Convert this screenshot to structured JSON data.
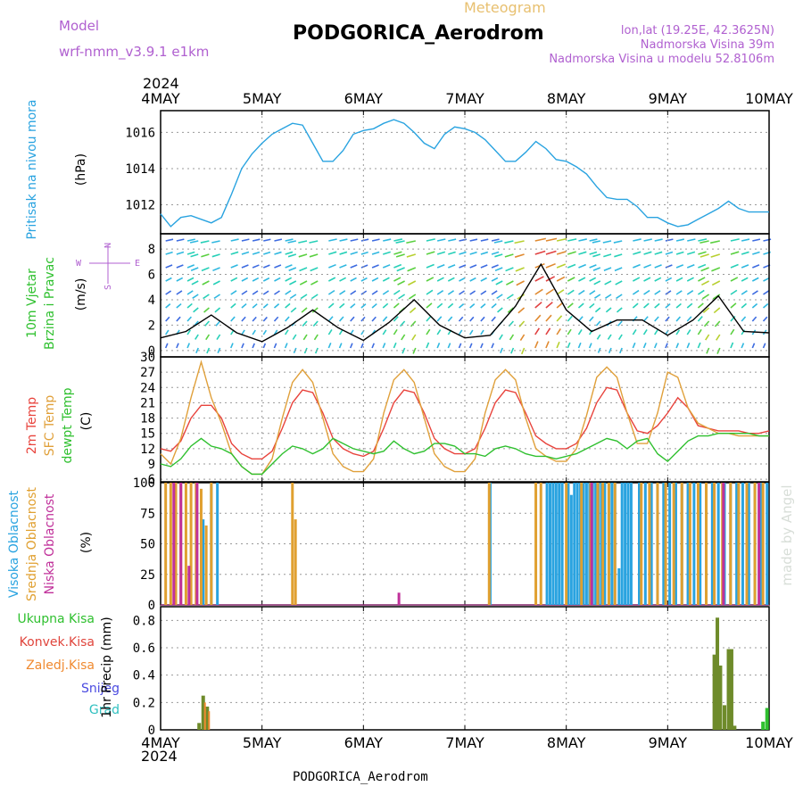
{
  "header": {
    "model_label": "Model",
    "model_name": "wrf-nmm_v3.9.1 e1km",
    "chart_kind": "Meteogram",
    "station": "PODGORICA_Aerodrom",
    "lonlat": "lon,lat (19.25E, 42.3625N)",
    "elevation": "Nadmorska Visina 39m",
    "model_elevation": "Nadmorska Visina u modelu 52.8106m",
    "bottom_station": "PODGORICA_Aerodrom",
    "credit": "made by Angel"
  },
  "colors": {
    "pressure": "#29a3e0",
    "t2m": "#e8433c",
    "tsfc": "#e0a03a",
    "dewpt": "#2fc02f",
    "total_precip": "#6e8b2a",
    "conv_precip": "#e0453c",
    "frozen_precip": "#f08a30",
    "snow": "#4a4ae0",
    "hail": "#30c0c0",
    "cloud_high": "#29a3e0",
    "cloud_mid": "#e0a030",
    "cloud_low": "#c0309a",
    "model_text": "#b060d0"
  },
  "chart_data": [
    {
      "type": "line",
      "panel": "pressure",
      "ylabel": "Pritisak na nivou mora",
      "unit": "(hPa)",
      "yticks": [
        1012,
        1014,
        1016
      ],
      "ylim": [
        1010.4,
        1017.2
      ],
      "x_days": [
        0,
        0.1,
        0.2,
        0.3,
        0.4,
        0.5,
        0.6,
        0.7,
        0.8,
        0.9,
        1.0,
        1.1,
        1.2,
        1.3,
        1.4,
        1.5,
        1.6,
        1.7,
        1.8,
        1.9,
        2.0,
        2.1,
        2.2,
        2.3,
        2.4,
        2.5,
        2.6,
        2.7,
        2.8,
        2.9,
        3.0,
        3.1,
        3.2,
        3.3,
        3.4,
        3.5,
        3.6,
        3.7,
        3.8,
        3.9,
        4.0,
        4.1,
        4.2,
        4.3,
        4.4,
        4.5,
        4.6,
        4.7,
        4.8,
        4.9,
        5.0,
        5.1,
        5.2,
        5.3,
        5.4,
        5.5,
        5.6,
        5.7,
        5.8,
        5.9,
        6.0
      ],
      "series": [
        {
          "values": [
            1011.5,
            1010.8,
            1011.3,
            1011.4,
            1011.2,
            1011.0,
            1011.3,
            1012.6,
            1014.0,
            1014.8,
            1015.4,
            1015.9,
            1016.2,
            1016.5,
            1016.4,
            1015.4,
            1014.4,
            1014.4,
            1015.0,
            1015.9,
            1016.1,
            1016.2,
            1016.5,
            1016.7,
            1016.5,
            1016.0,
            1015.4,
            1015.1,
            1015.9,
            1016.3,
            1016.2,
            1016.0,
            1015.6,
            1015.0,
            1014.4,
            1014.4,
            1014.9,
            1015.5,
            1015.1,
            1014.5,
            1014.4,
            1014.1,
            1013.7,
            1013.0,
            1012.4,
            1012.3,
            1012.3,
            1011.9,
            1011.3,
            1011.3,
            1011.0,
            1010.8,
            1010.9,
            1011.2,
            1011.5,
            1011.8,
            1012.2,
            1011.8,
            1011.6,
            1011.6,
            1011.6
          ]
        }
      ]
    },
    {
      "type": "line",
      "panel": "wind",
      "ylabel": "10m Vjetar Brzina i Pravac",
      "unit": "(m/s)",
      "compass": [
        "N",
        "W",
        "E",
        "S"
      ],
      "yticks": [
        0,
        2,
        4,
        6,
        8
      ],
      "ylim": [
        -0.5,
        9.2
      ],
      "x_days": [
        0,
        0.25,
        0.5,
        0.75,
        1.0,
        1.25,
        1.5,
        1.75,
        2.0,
        2.25,
        2.5,
        2.75,
        3.0,
        3.25,
        3.5,
        3.75,
        4.0,
        4.25,
        4.5,
        4.75,
        5.0,
        5.25,
        5.5,
        5.75,
        6.0
      ],
      "series": [
        {
          "values": [
            1.0,
            1.5,
            2.8,
            1.4,
            0.7,
            1.8,
            3.2,
            1.8,
            0.8,
            2.2,
            4.0,
            2.0,
            1.0,
            1.2,
            3.5,
            6.8,
            3.2,
            1.5,
            2.4,
            2.4,
            1.2,
            2.4,
            4.3,
            1.5,
            1.4
          ]
        }
      ]
    },
    {
      "type": "line",
      "panel": "temperature",
      "ylabel": "2m Temp / SFC Temp / dewpt Temp",
      "unit": "(C)",
      "yticks": [
        6,
        9,
        12,
        15,
        18,
        21,
        24,
        27,
        30
      ],
      "ylim": [
        5.5,
        30
      ],
      "x_days": [
        0,
        0.1,
        0.2,
        0.3,
        0.4,
        0.5,
        0.6,
        0.7,
        0.8,
        0.9,
        1.0,
        1.1,
        1.2,
        1.3,
        1.4,
        1.5,
        1.6,
        1.7,
        1.8,
        1.9,
        2.0,
        2.1,
        2.2,
        2.3,
        2.4,
        2.5,
        2.6,
        2.7,
        2.8,
        2.9,
        3.0,
        3.1,
        3.2,
        3.3,
        3.4,
        3.5,
        3.6,
        3.7,
        3.8,
        3.9,
        4.0,
        4.1,
        4.2,
        4.3,
        4.4,
        4.5,
        4.6,
        4.7,
        4.8,
        4.9,
        5.0,
        5.1,
        5.2,
        5.3,
        5.4,
        5.5,
        5.6,
        5.7,
        5.8,
        5.9,
        6.0
      ],
      "series": [
        {
          "name": "2m Temp",
          "values": [
            12,
            11.5,
            13.5,
            18,
            20.5,
            20.5,
            18,
            13,
            11,
            10,
            10,
            11.5,
            16,
            21,
            23.5,
            23,
            19,
            14,
            12,
            11,
            10.5,
            11.5,
            16,
            21,
            23.5,
            23,
            19,
            14,
            12,
            11,
            11,
            12,
            16,
            21,
            23.5,
            23,
            19,
            14.5,
            13,
            12,
            12,
            13,
            16,
            21,
            24,
            23.5,
            19,
            15.5,
            15,
            16.5,
            19,
            22,
            20,
            16.5,
            16,
            15.5,
            15.5,
            15.5,
            15,
            15,
            15.5
          ]
        },
        {
          "name": "SFC Temp",
          "values": [
            11,
            9,
            14,
            22,
            29,
            22,
            17,
            11,
            8.5,
            7,
            7,
            10,
            18,
            25,
            27.5,
            25,
            18,
            11,
            8.5,
            7.5,
            7.5,
            10,
            19,
            25.5,
            27.5,
            25,
            18,
            11,
            8.5,
            7.5,
            7.5,
            10,
            19,
            25.5,
            27.5,
            25.5,
            18,
            12,
            10.5,
            9.5,
            9.5,
            12,
            18.5,
            26,
            28,
            26,
            19,
            13,
            13,
            19,
            27,
            26,
            20,
            17,
            16,
            15,
            15,
            14.5,
            14.5,
            14.5,
            14.5
          ]
        },
        {
          "name": "dewpt Temp",
          "values": [
            9,
            8.5,
            10,
            12.5,
            14,
            12.5,
            12,
            11,
            8.5,
            7,
            7,
            9,
            11,
            12.5,
            12,
            11,
            12,
            14,
            13,
            12,
            11.5,
            11,
            11.5,
            13.5,
            12,
            11,
            11.5,
            13,
            13,
            12.5,
            11,
            11,
            10.5,
            12,
            12.5,
            12,
            11,
            10.5,
            10.5,
            10,
            10.5,
            11,
            12,
            13,
            14,
            13.5,
            12,
            13.5,
            14,
            11,
            9.5,
            11.5,
            13.5,
            14.5,
            14.5,
            15,
            15,
            15,
            15,
            14.5,
            14.5
          ]
        }
      ]
    },
    {
      "type": "bar",
      "panel": "cloud",
      "ylabel": "Visoka Oblacnost / Srednja Oblacnost / Niska Oblacnost",
      "unit": "(%)",
      "yticks": [
        0,
        25,
        50,
        75,
        100
      ],
      "ylim": [
        0,
        100
      ],
      "series": [
        {
          "name": "Visoka Oblacnost",
          "x_days": [
            0.42,
            0.5,
            0.56,
            3.25,
            3.81,
            3.84,
            3.87,
            3.9,
            3.93,
            3.96,
            4.02,
            4.05,
            4.08,
            4.11,
            4.14,
            4.17,
            4.2,
            4.23,
            4.26,
            4.29,
            4.32,
            4.35,
            4.38,
            4.42,
            4.45,
            4.48,
            4.52,
            4.55,
            4.58,
            4.61,
            4.64,
            4.72,
            4.78,
            4.84,
            4.9,
            4.96,
            5.02,
            5.08,
            5.14,
            5.2,
            5.26,
            5.32,
            5.38,
            5.44,
            5.5,
            5.56,
            5.62,
            5.68,
            5.74,
            5.8,
            5.86,
            5.92,
            5.98
          ],
          "values": [
            70,
            100,
            100,
            100,
            100,
            100,
            100,
            100,
            100,
            100,
            100,
            90,
            100,
            100,
            100,
            100,
            100,
            100,
            100,
            100,
            100,
            100,
            100,
            100,
            100,
            100,
            30,
            100,
            100,
            100,
            100,
            100,
            100,
            100,
            100,
            100,
            100,
            100,
            100,
            100,
            100,
            100,
            100,
            100,
            100,
            100,
            100,
            100,
            100,
            100,
            100,
            100,
            100
          ]
        },
        {
          "name": "Srednja Oblacnost",
          "x_days": [
            0.05,
            0.1,
            0.15,
            0.2,
            0.25,
            0.3,
            0.35,
            0.4,
            0.45,
            0.5,
            1.3,
            1.33,
            3.24,
            3.7,
            3.75,
            4.0,
            4.15,
            4.24,
            4.31,
            4.36,
            4.42,
            4.48,
            4.74,
            4.82,
            4.9,
            4.98,
            5.06,
            5.14,
            5.22,
            5.3,
            5.38,
            5.46,
            5.54,
            5.62,
            5.7,
            5.78,
            5.86,
            5.94
          ],
          "values": [
            100,
            100,
            100,
            100,
            100,
            100,
            100,
            95,
            65,
            100,
            100,
            70,
            100,
            100,
            100,
            100,
            100,
            100,
            100,
            100,
            100,
            100,
            100,
            100,
            100,
            100,
            100,
            100,
            100,
            100,
            100,
            100,
            100,
            100,
            100,
            100,
            100,
            100
          ]
        },
        {
          "name": "Niska Oblacnost",
          "x_days": [
            0.13,
            0.2,
            0.28,
            0.36,
            2.35,
            4.25,
            5.55,
            5.9
          ],
          "values": [
            100,
            100,
            32,
            100,
            10,
            100,
            100,
            100
          ]
        }
      ]
    },
    {
      "type": "bar",
      "panel": "precip",
      "ylabel": "1hr Precip (mm)",
      "legend": [
        "Ukupna Kisa",
        "Konvek.Kisa",
        "Zaledj.Kisa",
        "Snijeg",
        "Grad"
      ],
      "yticks": [
        0,
        0.2,
        0.4,
        0.6,
        0.8
      ],
      "ylim": [
        0,
        0.9
      ],
      "series": [
        {
          "name": "Ukupna Kisa",
          "x_days": [
            0.38,
            0.42,
            0.46,
            5.46,
            5.49,
            5.52,
            5.56,
            5.6,
            5.63,
            5.66,
            5.94,
            5.98
          ],
          "values": [
            0.05,
            0.25,
            0.17,
            0.55,
            0.82,
            0.47,
            0.18,
            0.59,
            0.59,
            0.03,
            0.06,
            0.16
          ]
        }
      ]
    }
  ],
  "x_axis": {
    "year": "2024",
    "day_labels": [
      "4MAY",
      "5MAY",
      "6MAY",
      "7MAY",
      "8MAY",
      "9MAY",
      "10MAY"
    ]
  }
}
